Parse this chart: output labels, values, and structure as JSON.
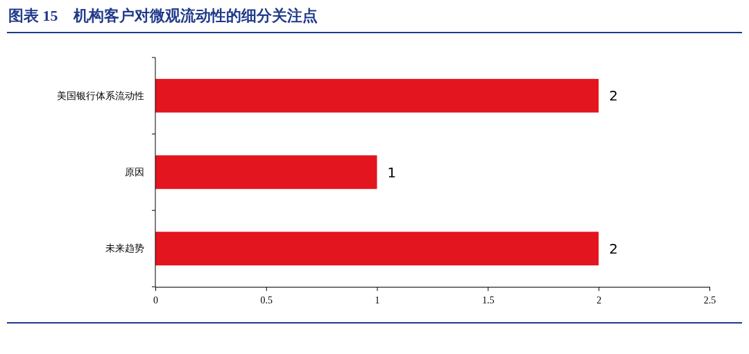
{
  "chart_data": {
    "type": "bar",
    "orientation": "horizontal",
    "title": "图表 15　机构客户对微观流动性的细分关注点",
    "categories": [
      "美国银行体系流动性",
      "原因",
      "未来趋势"
    ],
    "values": [
      2,
      1,
      2
    ],
    "color": "#e3151f",
    "xlim": [
      0,
      2.5
    ],
    "xticks": [
      0,
      0.5,
      1,
      1.5,
      2,
      2.5
    ],
    "grid": false,
    "data_labels": true
  }
}
